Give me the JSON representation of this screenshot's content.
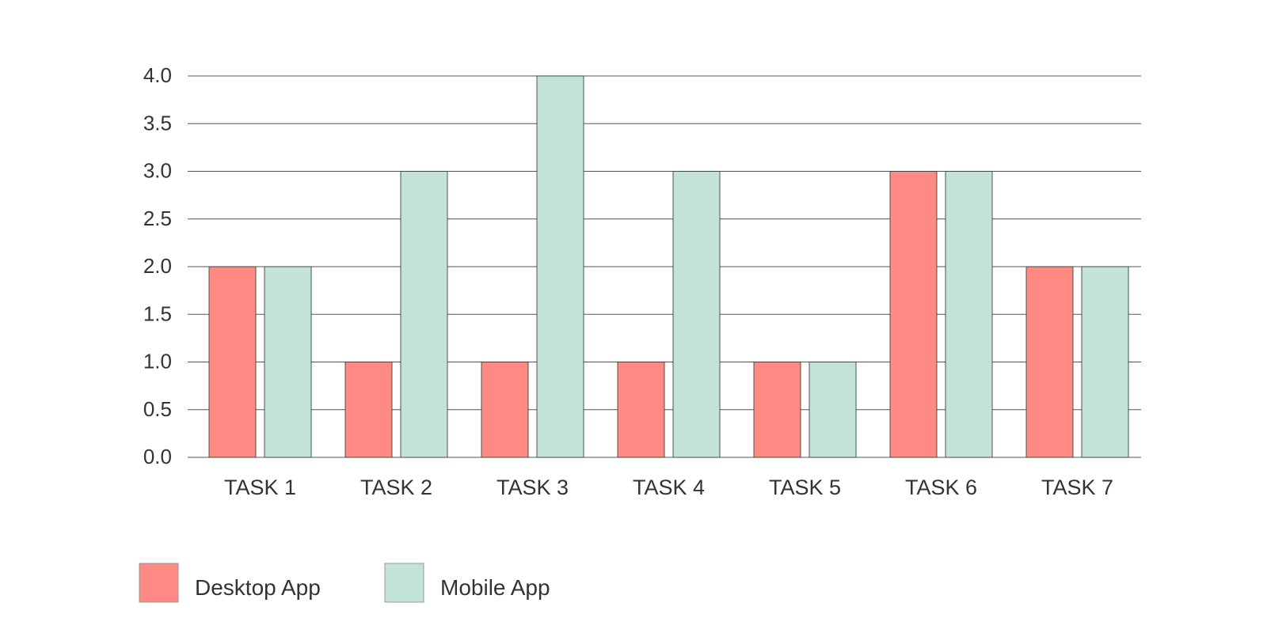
{
  "chart_data": {
    "type": "bar",
    "categories": [
      "TASK 1",
      "TASK 2",
      "TASK 3",
      "TASK 4",
      "TASK 5",
      "TASK 6",
      "TASK 7"
    ],
    "series": [
      {
        "name": "Desktop App",
        "color": "#ff8a84",
        "values": [
          2,
          1,
          1,
          1,
          1,
          3,
          2
        ]
      },
      {
        "name": "Mobile App",
        "color": "#c4e3d8",
        "values": [
          2,
          3,
          4,
          3,
          1,
          3,
          2
        ]
      }
    ],
    "ylim": [
      0,
      4
    ],
    "yticks": [
      "0.0",
      "0.5",
      "1.0",
      "1.5",
      "2.0",
      "2.5",
      "3.0",
      "3.5",
      "4.0"
    ],
    "grid": true,
    "legend_position": "bottom-left"
  }
}
